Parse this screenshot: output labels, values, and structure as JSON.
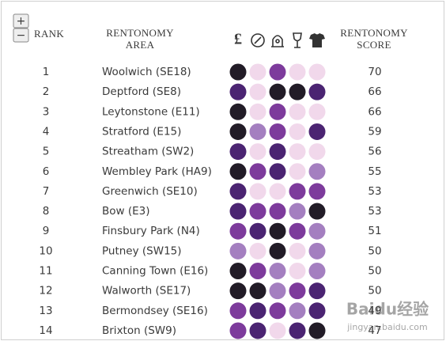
{
  "controls": {
    "zoom_in": "+",
    "zoom_out": "−"
  },
  "header": {
    "rank": "RANK",
    "area": [
      "RENTONOMY",
      "AREA"
    ],
    "price_icon": "£",
    "score": [
      "RENTONOMY",
      "SCORE"
    ]
  },
  "palette": {
    "K": "#221c27",
    "D": "#4b2472",
    "P": "#7d3b9c",
    "M": "#a47fc0",
    "L": "#f1d8eb"
  },
  "rows": [
    {
      "rank": "1",
      "area": "Woolwich (SE18)",
      "ratings": [
        "K",
        "L",
        "P",
        "L",
        "L"
      ],
      "score": "70"
    },
    {
      "rank": "2",
      "area": "Deptford (SE8)",
      "ratings": [
        "D",
        "L",
        "K",
        "K",
        "D"
      ],
      "score": "66"
    },
    {
      "rank": "3",
      "area": "Leytonstone (E11)",
      "ratings": [
        "K",
        "L",
        "P",
        "L",
        "L"
      ],
      "score": "66"
    },
    {
      "rank": "4",
      "area": "Stratford (E15)",
      "ratings": [
        "K",
        "M",
        "P",
        "L",
        "D"
      ],
      "score": "59"
    },
    {
      "rank": "5",
      "area": "Streatham (SW2)",
      "ratings": [
        "D",
        "L",
        "D",
        "L",
        "L"
      ],
      "score": "56"
    },
    {
      "rank": "6",
      "area": "Wembley Park (HA9)",
      "ratings": [
        "K",
        "P",
        "D",
        "L",
        "M"
      ],
      "score": "55"
    },
    {
      "rank": "7",
      "area": "Greenwich (SE10)",
      "ratings": [
        "D",
        "L",
        "L",
        "P",
        "P"
      ],
      "score": "53"
    },
    {
      "rank": "8",
      "area": "Bow (E3)",
      "ratings": [
        "D",
        "P",
        "P",
        "M",
        "K"
      ],
      "score": "53"
    },
    {
      "rank": "9",
      "area": "Finsbury Park (N4)",
      "ratings": [
        "P",
        "D",
        "K",
        "P",
        "M"
      ],
      "score": "51"
    },
    {
      "rank": "10",
      "area": "Putney (SW15)",
      "ratings": [
        "M",
        "L",
        "K",
        "L",
        "M"
      ],
      "score": "50"
    },
    {
      "rank": "11",
      "area": "Canning Town (E16)",
      "ratings": [
        "K",
        "P",
        "M",
        "L",
        "M"
      ],
      "score": "50"
    },
    {
      "rank": "12",
      "area": "Walworth (SE17)",
      "ratings": [
        "K",
        "K",
        "M",
        "P",
        "D"
      ],
      "score": "50"
    },
    {
      "rank": "13",
      "area": "Bermondsey (SE16)",
      "ratings": [
        "P",
        "D",
        "P",
        "M",
        "D"
      ],
      "score": "49"
    },
    {
      "rank": "14",
      "area": "Brixton (SW9)",
      "ratings": [
        "P",
        "D",
        "L",
        "D",
        "K"
      ],
      "score": "47"
    }
  ],
  "watermark": {
    "brand": "Baidu经验",
    "url": "jingyan.baidu.com"
  }
}
